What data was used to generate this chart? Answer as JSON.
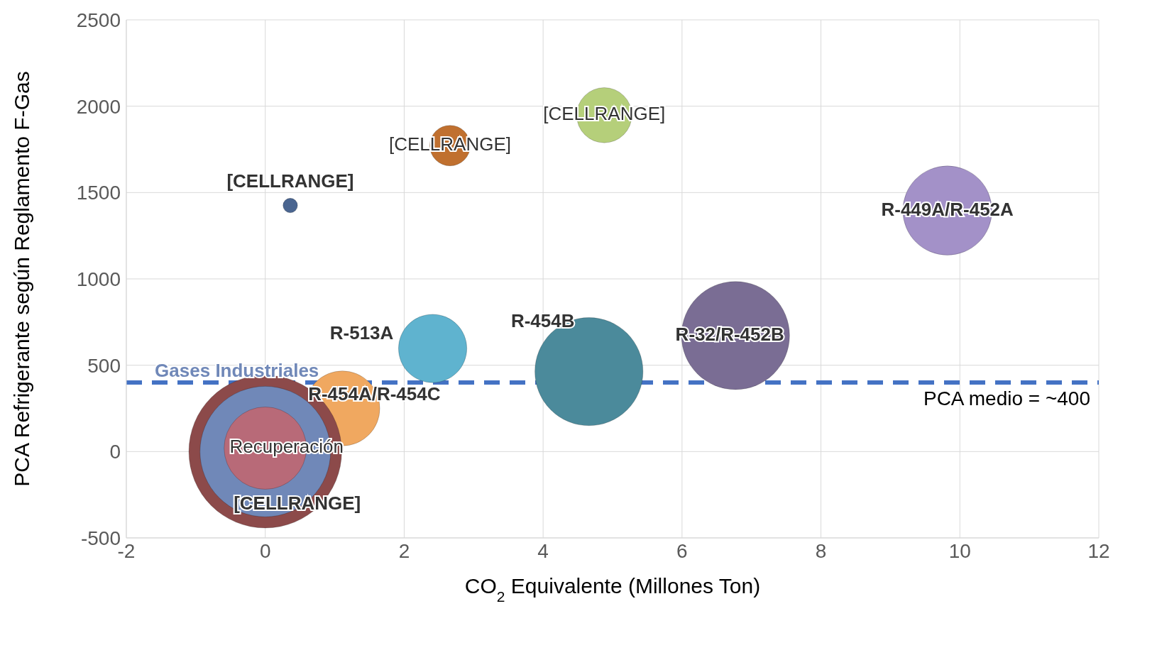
{
  "chart_data": {
    "type": "bubble",
    "xlabel": "CO$_{2}$ Equivalente (Millones Ton)",
    "ylabel": "PCA Refrigerante según Reglamento F-Gas",
    "xlim": [
      -2,
      12
    ],
    "xticks": [
      -2,
      0,
      2,
      4,
      6,
      8,
      10,
      12
    ],
    "ylim": [
      -500,
      2500
    ],
    "yticks": [
      -500,
      0,
      500,
      1000,
      1500,
      2000,
      2500
    ],
    "grid": true,
    "legend": false,
    "ref_lines": [
      {
        "axis": "y",
        "value": 400,
        "label": "PCA medio = ~400",
        "color": "#4472c4",
        "line_style": "dashed"
      }
    ],
    "series": [
      {
        "name": "[CELLRANGE]",
        "color": "#4a6590",
        "x": [
          0.36
        ],
        "values": [
          1425
        ],
        "sizes": [
          0.009
        ]
      },
      {
        "name": "[CELLRANGE]",
        "color": "#c0702f",
        "x": [
          2.66
        ],
        "values": [
          1772
        ],
        "sizes": [
          0.07
        ]
      },
      {
        "name": "[CELLRANGE]",
        "color": "#b5cf7a",
        "x": [
          4.88
        ],
        "values": [
          1948
        ],
        "sizes": [
          0.13
        ]
      },
      {
        "name": "R-449A/R-452A",
        "color": "#a391c8",
        "x": [
          9.82
        ],
        "values": [
          1396
        ],
        "sizes": [
          0.34
        ]
      },
      {
        "name": "R-32/R-452B",
        "color": "#7a6d94",
        "x": [
          6.77
        ],
        "values": [
          672
        ],
        "sizes": [
          0.5
        ]
      },
      {
        "name": "R-454B",
        "color": "#4b8a9b",
        "x": [
          4.66
        ],
        "values": [
          463
        ],
        "sizes": [
          0.5
        ]
      },
      {
        "name": "R-513A",
        "color": "#5fb3cf",
        "x": [
          2.41
        ],
        "values": [
          597
        ],
        "sizes": [
          0.2
        ]
      },
      {
        "name": "R-454A/R-454C",
        "color": "#f0a860",
        "x": [
          1.11
        ],
        "values": [
          250
        ],
        "sizes": [
          0.24
        ]
      },
      {
        "name": "[CELLRANGE]",
        "color": "#8c4a4a",
        "x": [
          0
        ],
        "values": [
          0
        ],
        "sizes": [
          1
        ]
      },
      {
        "name": "Gases Industriales",
        "color": "#7088b8",
        "x": [
          0
        ],
        "values": [
          0
        ],
        "sizes": [
          0.73
        ]
      },
      {
        "name": "Recuperación",
        "color": "#b86a78",
        "x": [
          0
        ],
        "values": [
          20
        ],
        "sizes": [
          0.29
        ]
      }
    ]
  }
}
